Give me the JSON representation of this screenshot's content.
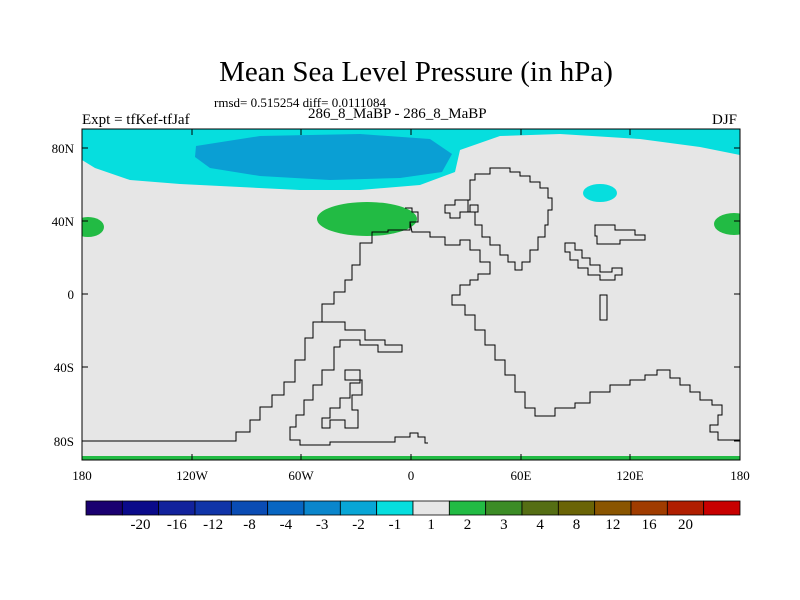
{
  "title": "Mean Sea Level Pressure (in hPa)",
  "stats": "rmsd= 0.515254 diff= 0.0111084",
  "left_label": "Expt = tfKef-tfJaf",
  "center_label": "286_8_MaBP - 286_8_MaBP",
  "right_label": "DJF",
  "y_ticks": [
    "80N",
    "40N",
    "0",
    "40S",
    "80S"
  ],
  "x_ticks": [
    "180",
    "120W",
    "60W",
    "0",
    "60E",
    "120E",
    "180"
  ],
  "colorbar": {
    "colors": [
      "#1a0070",
      "#0a0a8a",
      "#12229c",
      "#1034a8",
      "#0a4cb4",
      "#0866c2",
      "#0a86cc",
      "#08a6d6",
      "#06dede",
      "#e6e6e6",
      "#22bb44",
      "#3c8c26",
      "#556e14",
      "#6a6406",
      "#8a5500",
      "#a03c00",
      "#b01e00",
      "#c80000"
    ],
    "labels": [
      "-20",
      "-16",
      "-12",
      "-8",
      "-4",
      "-3",
      "-2",
      "-1",
      "1",
      "2",
      "3",
      "4",
      "8",
      "12",
      "16",
      "20"
    ]
  },
  "colors": {
    "background": "#e6e6e6",
    "neg1": "#06dede",
    "neg2": "#0a9fd4",
    "pos1": "#22bb44"
  }
}
